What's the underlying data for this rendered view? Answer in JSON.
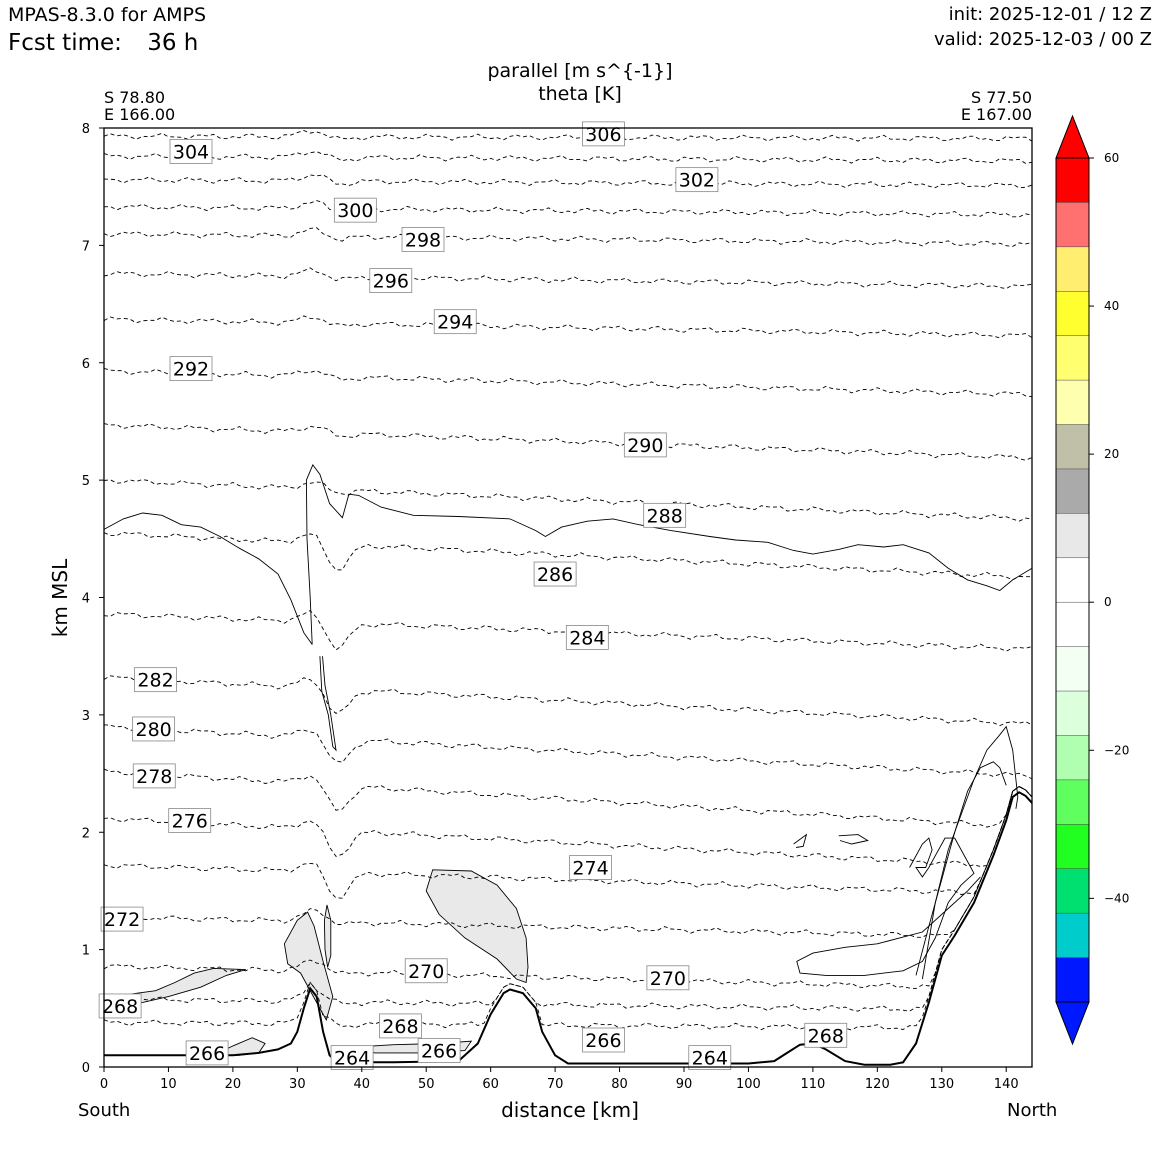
{
  "header": {
    "model": "MPAS-8.3.0 for AMPS",
    "fcst_label": "Fcst time:",
    "fcst_value": "36 h",
    "init": "init: 2025-12-01 / 12 Z",
    "valid": "valid: 2025-12-03 / 00 Z"
  },
  "endpoints": {
    "left_lat": "S 78.80",
    "left_lon": "E 166.00",
    "right_lat": "S 77.50",
    "right_lon": "E 167.00",
    "left_dir": "South",
    "right_dir": "North"
  },
  "chart_data": {
    "type": "cross-section contour",
    "title": "parallel [m s^{-1}]",
    "subtitle": "theta [K]",
    "xlabel": "distance [km]",
    "ylabel": "km MSL",
    "xlim": [
      0,
      144
    ],
    "ylim": [
      0,
      8
    ],
    "x_ticks": [
      0,
      10,
      20,
      30,
      40,
      50,
      60,
      70,
      80,
      90,
      100,
      110,
      120,
      130,
      140
    ],
    "y_ticks": [
      0,
      1,
      2,
      3,
      4,
      5,
      6,
      7,
      8
    ],
    "terrain": {
      "x": [
        0,
        20,
        24,
        27,
        29,
        30,
        31,
        32,
        33,
        34,
        35,
        36,
        38,
        45,
        55,
        58,
        60,
        62,
        63,
        65,
        67,
        68,
        70,
        72,
        100,
        104,
        106,
        108,
        110,
        112,
        115,
        118,
        122,
        124,
        126,
        128,
        130,
        132,
        135,
        138,
        140,
        141,
        142,
        143,
        144
      ],
      "y": [
        0.1,
        0.1,
        0.12,
        0.15,
        0.2,
        0.3,
        0.5,
        0.67,
        0.6,
        0.3,
        0.1,
        0.05,
        0.04,
        0.04,
        0.05,
        0.2,
        0.45,
        0.63,
        0.66,
        0.63,
        0.5,
        0.3,
        0.1,
        0.03,
        0.03,
        0.05,
        0.12,
        0.19,
        0.2,
        0.15,
        0.05,
        0.02,
        0.02,
        0.04,
        0.2,
        0.55,
        0.95,
        1.12,
        1.4,
        1.8,
        2.1,
        2.3,
        2.34,
        2.31,
        2.25
      ]
    },
    "theta_labels": [
      {
        "value": "306",
        "x": 77.5,
        "y": 7.95
      },
      {
        "value": "304",
        "x": 13.5,
        "y": 7.8
      },
      {
        "value": "302",
        "x": 92,
        "y": 7.56
      },
      {
        "value": "300",
        "x": 39,
        "y": 7.3
      },
      {
        "value": "298",
        "x": 49.5,
        "y": 7.05
      },
      {
        "value": "296",
        "x": 44.5,
        "y": 6.7
      },
      {
        "value": "294",
        "x": 54.5,
        "y": 6.35
      },
      {
        "value": "292",
        "x": 13.5,
        "y": 5.95
      },
      {
        "value": "290",
        "x": 84,
        "y": 5.3
      },
      {
        "value": "288",
        "x": 87,
        "y": 4.7
      },
      {
        "value": "286",
        "x": 70,
        "y": 4.2
      },
      {
        "value": "284",
        "x": 75,
        "y": 3.66
      },
      {
        "value": "282",
        "x": 8,
        "y": 3.3
      },
      {
        "value": "280",
        "x": 7.7,
        "y": 2.88
      },
      {
        "value": "278",
        "x": 7.8,
        "y": 2.48
      },
      {
        "value": "276",
        "x": 13.3,
        "y": 2.1
      },
      {
        "value": "274",
        "x": 75.5,
        "y": 1.7
      },
      {
        "value": "272",
        "x": 2.8,
        "y": 1.26
      },
      {
        "value": "270",
        "x": 50,
        "y": 0.82
      },
      {
        "value": "270",
        "x": 87.5,
        "y": 0.76
      },
      {
        "value": "268",
        "x": 2.5,
        "y": 0.52
      },
      {
        "value": "268",
        "x": 46,
        "y": 0.35
      },
      {
        "value": "268",
        "x": 112,
        "y": 0.27
      },
      {
        "value": "266",
        "x": 16,
        "y": 0.12
      },
      {
        "value": "266",
        "x": 52,
        "y": 0.14
      },
      {
        "value": "266",
        "x": 77.5,
        "y": 0.23
      },
      {
        "value": "264",
        "x": 38.5,
        "y": 0.08
      },
      {
        "value": "264",
        "x": 94,
        "y": 0.08
      }
    ],
    "colorbar": {
      "ticks": [
        "60",
        "40",
        "20",
        "0",
        "−20",
        "−40"
      ],
      "tick_values": [
        60,
        40,
        20,
        0,
        -20,
        -40
      ],
      "colors_top_to_bottom": [
        "#ff0000",
        "#ff7070",
        "#ffee70",
        "#ffff30",
        "#ffff70",
        "#ffffb0",
        "#c0c0a8",
        "#aaaaaa",
        "#e8e8e8",
        "#ffffff",
        "#ffffff",
        "#f4fff4",
        "#dcffdc",
        "#b0ffb0",
        "#60ff60",
        "#20ff20",
        "#00e070",
        "#00cccc",
        "#0018ff"
      ],
      "over_color": "#ff0000",
      "under_color": "#0018ff"
    }
  }
}
